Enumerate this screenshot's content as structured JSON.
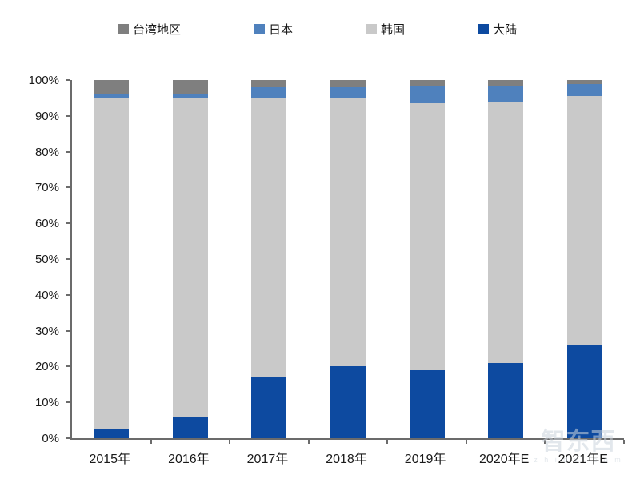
{
  "chart_data": {
    "type": "bar",
    "subtype": "stacked-100-percent",
    "title": "",
    "categories": [
      "2015年",
      "2016年",
      "2017年",
      "2018年",
      "2019年",
      "2020年E",
      "2021年E"
    ],
    "series": [
      {
        "name": "台湾地区",
        "color": "#7F7F7F",
        "values": [
          4,
          4,
          2,
          2,
          1.5,
          1.5,
          1
        ]
      },
      {
        "name": "日本",
        "color": "#4F81BD",
        "values": [
          1,
          1,
          3,
          3,
          5,
          4.5,
          3.5
        ]
      },
      {
        "name": "韩国",
        "color": "#C9C9C9",
        "values": [
          92.5,
          89,
          78,
          75,
          74.5,
          73,
          69.5
        ]
      },
      {
        "name": "大陆",
        "color": "#0D4AA0",
        "values": [
          2.5,
          6,
          17,
          20,
          19,
          21,
          26
        ]
      }
    ],
    "stacking_order_bottom_to_top": [
      "大陆",
      "韩国",
      "日本",
      "台湾地区"
    ],
    "y_ticks": [
      "0%",
      "10%",
      "20%",
      "30%",
      "40%",
      "50%",
      "60%",
      "70%",
      "80%",
      "90%",
      "100%"
    ],
    "ylim": [
      0,
      100
    ],
    "xlabel": "",
    "ylabel": "",
    "legend_position": "top",
    "grid": false,
    "axis_color": "#6b6b6b"
  },
  "watermark": {
    "logo_text": "智东西",
    "domain": "z h i d x . c o m"
  }
}
